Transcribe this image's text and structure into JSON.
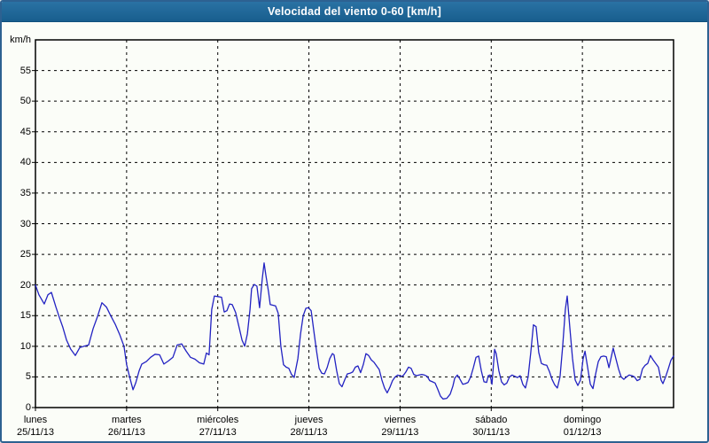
{
  "window": {
    "title": "Velocidad del viento 0-60 [km/h]"
  },
  "colors": {
    "titlebar_blue": "#1f6899",
    "frame_border_blue": "#2d6191",
    "page_background": "#fbfdf8",
    "grid_black": "#000000",
    "series_blue": "#2222c2"
  },
  "chart_data": {
    "type": "line",
    "title": "Velocidad del viento 0-60 [km/h]",
    "ylabel_unit": "km/h",
    "ylim": [
      0,
      60
    ],
    "xlim_hours": [
      0,
      168
    ],
    "grid": "dashed",
    "legend": "none",
    "y_ticks": [
      0,
      5,
      10,
      15,
      20,
      25,
      30,
      35,
      40,
      45,
      50,
      55
    ],
    "line_color": "#2222c2",
    "days": [
      {
        "name": "lunes",
        "date": "25/11/13",
        "start_hour": 0
      },
      {
        "name": "martes",
        "date": "26/11/13",
        "start_hour": 24
      },
      {
        "name": "miércoles",
        "date": "27/11/13",
        "start_hour": 48
      },
      {
        "name": "jueves",
        "date": "28/11/13",
        "start_hour": 72
      },
      {
        "name": "viernes",
        "date": "29/11/13",
        "start_hour": 96
      },
      {
        "name": "sábado",
        "date": "30/11/13",
        "start_hour": 120
      },
      {
        "name": "domingo",
        "date": "01/12/13",
        "start_hour": 144
      }
    ],
    "series": [
      {
        "name": "Velocidad del viento (km/h)",
        "points": [
          [
            0,
            20
          ],
          [
            0.9,
            18.4
          ],
          [
            2.3,
            16.9
          ],
          [
            3.3,
            18.4
          ],
          [
            4.2,
            18.8
          ],
          [
            5.4,
            16.4
          ],
          [
            6.3,
            14.7
          ],
          [
            7.2,
            13.1
          ],
          [
            8.2,
            11
          ],
          [
            9.3,
            9.5
          ],
          [
            10.5,
            8.5
          ],
          [
            11.7,
            9.8
          ],
          [
            12.8,
            10
          ],
          [
            14,
            10.2
          ],
          [
            15.2,
            12.9
          ],
          [
            16.3,
            14.8
          ],
          [
            17.5,
            17.1
          ],
          [
            18.7,
            16.4
          ],
          [
            19.8,
            15
          ],
          [
            21,
            13.6
          ],
          [
            22.2,
            11.9
          ],
          [
            23.3,
            10
          ],
          [
            24,
            7
          ],
          [
            24.7,
            5.2
          ],
          [
            25.7,
            2.9
          ],
          [
            26.4,
            4
          ],
          [
            27.3,
            6
          ],
          [
            28,
            7.1
          ],
          [
            29.2,
            7.5
          ],
          [
            30.3,
            8.2
          ],
          [
            31.5,
            8.7
          ],
          [
            32.7,
            8.6
          ],
          [
            33.8,
            7.1
          ],
          [
            35,
            7.6
          ],
          [
            36.2,
            8.2
          ],
          [
            37.3,
            10.2
          ],
          [
            38.5,
            10.4
          ],
          [
            39.7,
            9.2
          ],
          [
            40.8,
            8.2
          ],
          [
            42,
            7.9
          ],
          [
            43.2,
            7.3
          ],
          [
            44.3,
            7.1
          ],
          [
            45,
            8.9
          ],
          [
            45.7,
            8.6
          ],
          [
            46.4,
            16
          ],
          [
            47.1,
            18.2
          ],
          [
            48.1,
            18.1
          ],
          [
            49,
            18
          ],
          [
            49.7,
            15.6
          ],
          [
            50.4,
            15.8
          ],
          [
            51.1,
            16.9
          ],
          [
            51.8,
            16.8
          ],
          [
            52.7,
            15.5
          ],
          [
            53.7,
            12.9
          ],
          [
            54.4,
            11
          ],
          [
            55.1,
            10
          ],
          [
            55.8,
            12
          ],
          [
            56.5,
            16
          ],
          [
            56.9,
            19.4
          ],
          [
            57.6,
            20.1
          ],
          [
            58.3,
            19.8
          ],
          [
            59,
            16.3
          ],
          [
            59.7,
            21
          ],
          [
            60.2,
            23.6
          ],
          [
            60.7,
            21.5
          ],
          [
            61.4,
            18.8
          ],
          [
            61.8,
            16.8
          ],
          [
            62.5,
            16.7
          ],
          [
            63.2,
            16.6
          ],
          [
            63.9,
            15.4
          ],
          [
            64.6,
            10
          ],
          [
            65.3,
            7
          ],
          [
            66,
            6.6
          ],
          [
            66.7,
            6.4
          ],
          [
            67.4,
            5.4
          ],
          [
            68.1,
            4.9
          ],
          [
            69.1,
            8
          ],
          [
            69.8,
            12
          ],
          [
            70.5,
            15
          ],
          [
            71.2,
            16.2
          ],
          [
            71.9,
            16.3
          ],
          [
            72.6,
            15.8
          ],
          [
            73.3,
            12.5
          ],
          [
            74,
            9.3
          ],
          [
            74.7,
            6.4
          ],
          [
            75.4,
            5.6
          ],
          [
            76.1,
            5.5
          ],
          [
            76.8,
            6.5
          ],
          [
            77.5,
            8
          ],
          [
            78.2,
            8.8
          ],
          [
            78.6,
            8.6
          ],
          [
            79.3,
            6
          ],
          [
            80,
            3.9
          ],
          [
            80.7,
            3.4
          ],
          [
            81.4,
            4.5
          ],
          [
            82.1,
            5.5
          ],
          [
            82.8,
            5.6
          ],
          [
            83.5,
            5.8
          ],
          [
            84.2,
            6.6
          ],
          [
            84.9,
            6.8
          ],
          [
            85.6,
            5.7
          ],
          [
            86.3,
            7
          ],
          [
            87,
            8.8
          ],
          [
            87.7,
            8.5
          ],
          [
            88.4,
            7.8
          ],
          [
            89.1,
            7.4
          ],
          [
            89.8,
            6.8
          ],
          [
            90.5,
            6.2
          ],
          [
            91.2,
            4.5
          ],
          [
            91.9,
            3.2
          ],
          [
            92.6,
            2.4
          ],
          [
            93.3,
            3.3
          ],
          [
            94,
            4.4
          ],
          [
            94.7,
            5
          ],
          [
            95.4,
            5.3
          ],
          [
            96.1,
            5.1
          ],
          [
            96.8,
            5.2
          ],
          [
            97.5,
            5.8
          ],
          [
            98.2,
            6.6
          ],
          [
            98.9,
            6.4
          ],
          [
            99.6,
            5.4
          ],
          [
            100.3,
            5.2
          ],
          [
            101,
            5.3
          ],
          [
            101.7,
            5.4
          ],
          [
            102.4,
            5.3
          ],
          [
            103.1,
            5.1
          ],
          [
            103.8,
            4.4
          ],
          [
            104.5,
            4.2
          ],
          [
            105.2,
            4
          ],
          [
            105.9,
            3
          ],
          [
            106.6,
            1.9
          ],
          [
            107.3,
            1.4
          ],
          [
            108.3,
            1.5
          ],
          [
            109.2,
            2.2
          ],
          [
            109.9,
            3.5
          ],
          [
            110.4,
            4.8
          ],
          [
            111.1,
            5.3
          ],
          [
            111.8,
            4.6
          ],
          [
            112.5,
            3.8
          ],
          [
            113.2,
            3.9
          ],
          [
            113.9,
            4.1
          ],
          [
            114.6,
            5
          ],
          [
            115.3,
            6.5
          ],
          [
            116,
            8.2
          ],
          [
            116.7,
            8.4
          ],
          [
            117.4,
            6
          ],
          [
            118.1,
            4.2
          ],
          [
            118.8,
            4.1
          ],
          [
            119.2,
            5.2
          ],
          [
            119.7,
            5.3
          ],
          [
            120.2,
            3.8
          ],
          [
            120.9,
            9.5
          ],
          [
            121.3,
            8.8
          ],
          [
            122,
            6
          ],
          [
            122.7,
            4.2
          ],
          [
            123.4,
            3.7
          ],
          [
            124.1,
            4
          ],
          [
            124.8,
            5
          ],
          [
            125.5,
            5.3
          ],
          [
            126.2,
            5.1
          ],
          [
            126.9,
            4.9
          ],
          [
            127.6,
            5.2
          ],
          [
            128.3,
            3.8
          ],
          [
            129,
            3.2
          ],
          [
            129.7,
            5
          ],
          [
            130.4,
            9
          ],
          [
            131.1,
            13.5
          ],
          [
            131.8,
            13.2
          ],
          [
            132.5,
            9
          ],
          [
            133.2,
            7.2
          ],
          [
            133.9,
            7
          ],
          [
            134.6,
            6.9
          ],
          [
            135.3,
            5.9
          ],
          [
            136,
            4.6
          ],
          [
            136.7,
            3.7
          ],
          [
            137.4,
            3.2
          ],
          [
            138.1,
            5
          ],
          [
            138.8,
            10
          ],
          [
            139.5,
            16
          ],
          [
            140,
            18.2
          ],
          [
            140.7,
            13
          ],
          [
            141.4,
            8
          ],
          [
            142.1,
            4.5
          ],
          [
            142.8,
            3.6
          ],
          [
            143.5,
            4.5
          ],
          [
            144.2,
            8
          ],
          [
            144.7,
            9.2
          ],
          [
            145.4,
            6.5
          ],
          [
            146.1,
            3.8
          ],
          [
            146.8,
            3.1
          ],
          [
            147.5,
            5.5
          ],
          [
            148.2,
            7.5
          ],
          [
            148.9,
            8.3
          ],
          [
            149.6,
            8.4
          ],
          [
            150.3,
            8.3
          ],
          [
            151,
            6.5
          ],
          [
            151.7,
            8.5
          ],
          [
            152.1,
            9.7
          ],
          [
            152.8,
            8
          ],
          [
            153.5,
            6.3
          ],
          [
            154.2,
            5
          ],
          [
            154.9,
            4.6
          ],
          [
            155.6,
            5
          ],
          [
            156.3,
            5.3
          ],
          [
            157,
            5.2
          ],
          [
            157.7,
            5
          ],
          [
            158.4,
            4.4
          ],
          [
            159.1,
            4.6
          ],
          [
            159.8,
            6.3
          ],
          [
            160.5,
            6.9
          ],
          [
            161.2,
            7.2
          ],
          [
            161.9,
            8.5
          ],
          [
            162.6,
            7.8
          ],
          [
            163.3,
            7.2
          ],
          [
            164,
            6.6
          ],
          [
            164.7,
            4.5
          ],
          [
            165.2,
            3.9
          ],
          [
            165.9,
            5
          ],
          [
            166.6,
            6.3
          ],
          [
            167.3,
            7.7
          ],
          [
            168,
            8.4
          ]
        ]
      }
    ]
  }
}
